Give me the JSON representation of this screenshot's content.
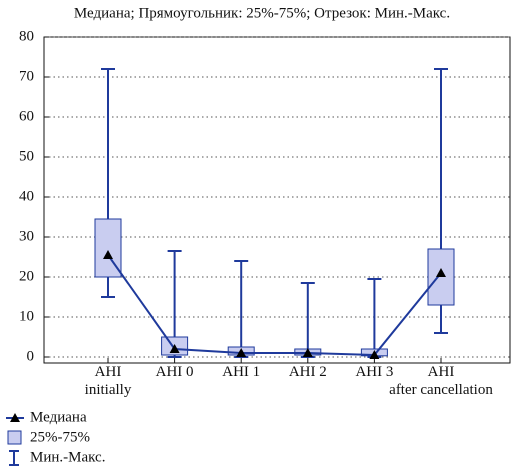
{
  "chart_data": {
    "type": "box",
    "title": "Медиана; Прямоугольник: 25%-75%; Отрезок: Мин.-Макс.",
    "categories": [
      "AHI initially",
      "AHI 0",
      "AHI 1",
      "AHI 2",
      "AHI 3",
      "AHI after cancellation"
    ],
    "boxes": {
      "min": [
        15,
        0,
        0,
        0,
        0,
        6
      ],
      "q1": [
        20,
        0.5,
        0.5,
        0.5,
        0.3,
        13
      ],
      "median": [
        25.5,
        2,
        1,
        1,
        0.5,
        21
      ],
      "q3": [
        34.5,
        5,
        2.5,
        2,
        2,
        27
      ],
      "max": [
        72,
        26.5,
        24,
        18.5,
        19.5,
        72
      ]
    },
    "box_color": "#c9cdf0",
    "line_color": "#1f3a9c",
    "ylim": [
      -1.5,
      80
    ],
    "yticks": [
      0,
      10,
      20,
      30,
      40,
      50,
      60,
      70,
      80
    ],
    "grid": true,
    "legend": {
      "median": "Медиана",
      "box": "25%-75%",
      "whisker": "Мин.-Макс."
    }
  }
}
